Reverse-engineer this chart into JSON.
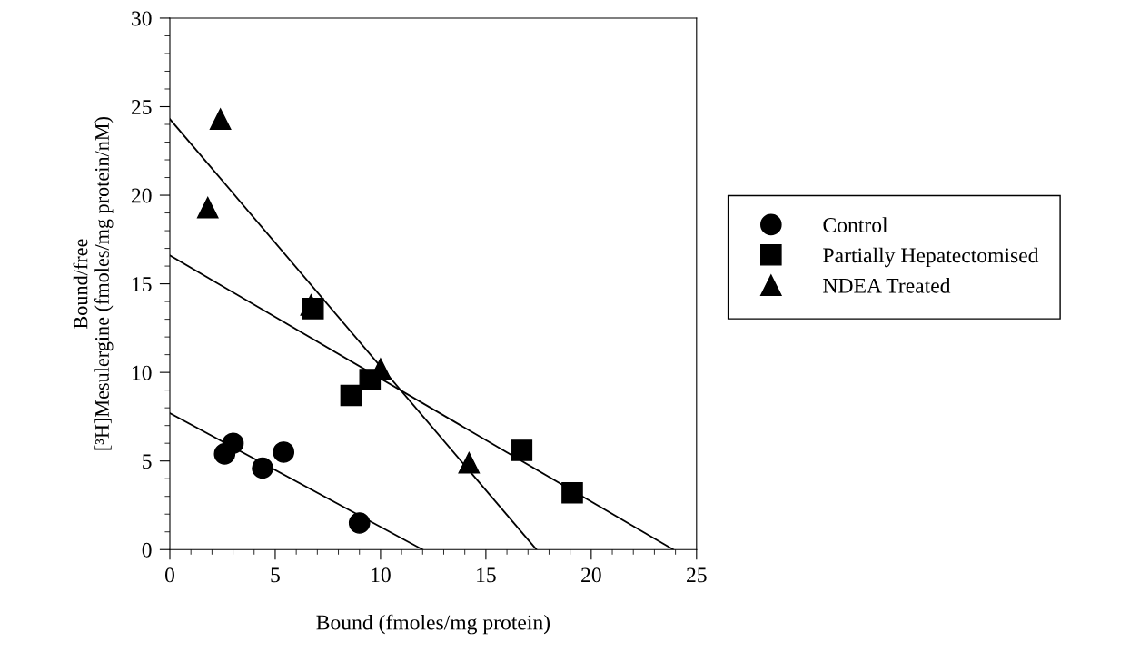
{
  "chart_data": {
    "type": "scatter",
    "xlabel": "Bound (fmoles/mg protein)",
    "ylabel": "Bound/free\n[³H]Mesulergine (fmoles/mg protein/nM)",
    "xlim": [
      0,
      25
    ],
    "xticks": [
      0,
      5,
      10,
      15,
      20,
      25
    ],
    "ylim": [
      0,
      30
    ],
    "yticks": [
      0,
      5,
      10,
      15,
      20,
      25,
      30
    ],
    "grid": false,
    "legend": "right",
    "series": [
      {
        "name": "Control",
        "color": "#000000",
        "marker": "circle",
        "x": [
          2.6,
          3.0,
          4.4,
          5.4,
          9.0
        ],
        "values": [
          5.4,
          6.0,
          4.6,
          5.5,
          1.5
        ]
      },
      {
        "name": "Partially Hepatectomised",
        "color": "#000000",
        "marker": "square",
        "x": [
          6.8,
          8.6,
          9.5,
          16.7,
          19.1
        ],
        "values": [
          13.6,
          8.7,
          9.6,
          5.6,
          3.2
        ]
      },
      {
        "name": "NDEA Treated",
        "color": "#000000",
        "marker": "triangle",
        "x": [
          1.8,
          2.4,
          6.7,
          10.0,
          14.2
        ],
        "values": [
          19.3,
          24.3,
          13.8,
          10.2,
          4.9
        ]
      },
      {
        "type": "line",
        "color": "#000000",
        "marker": "none",
        "line_style": "solid",
        "x": [
          0,
          12.0
        ],
        "values": [
          7.7,
          0
        ]
      },
      {
        "type": "line",
        "color": "#000000",
        "marker": "none",
        "line_style": "solid",
        "x": [
          0,
          23.9
        ],
        "values": [
          16.6,
          0
        ]
      },
      {
        "type": "line",
        "color": "#000000",
        "marker": "none",
        "line_style": "solid",
        "x": [
          0,
          17.4
        ],
        "values": [
          24.3,
          0
        ]
      }
    ]
  }
}
